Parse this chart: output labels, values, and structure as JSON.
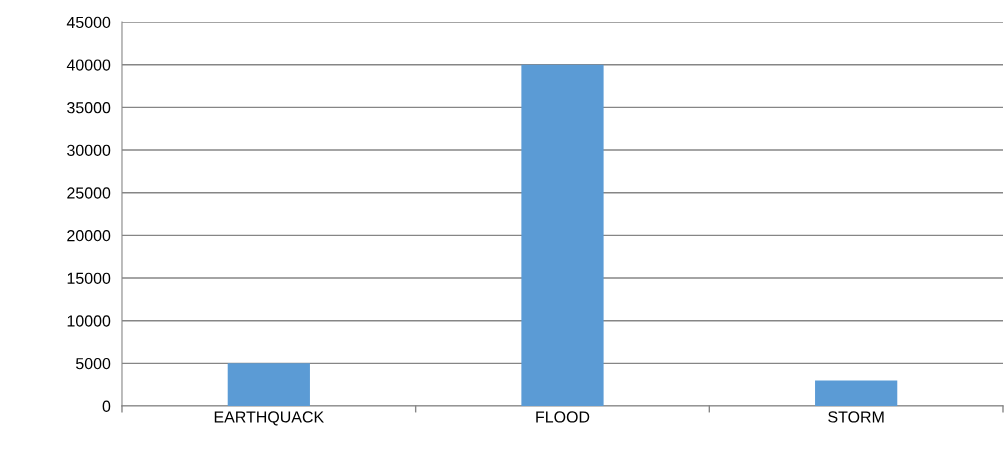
{
  "chart_data": {
    "type": "bar",
    "categories": [
      "EARTHQUACK",
      "FLOOD",
      "STORM"
    ],
    "values": [
      5000,
      40000,
      3000
    ],
    "color": "#5b9bd5",
    "ylim": [
      0,
      45000
    ],
    "yticks": [
      0,
      5000,
      10000,
      15000,
      20000,
      25000,
      30000,
      35000,
      40000,
      45000
    ],
    "grid": "y",
    "legend": false
  }
}
